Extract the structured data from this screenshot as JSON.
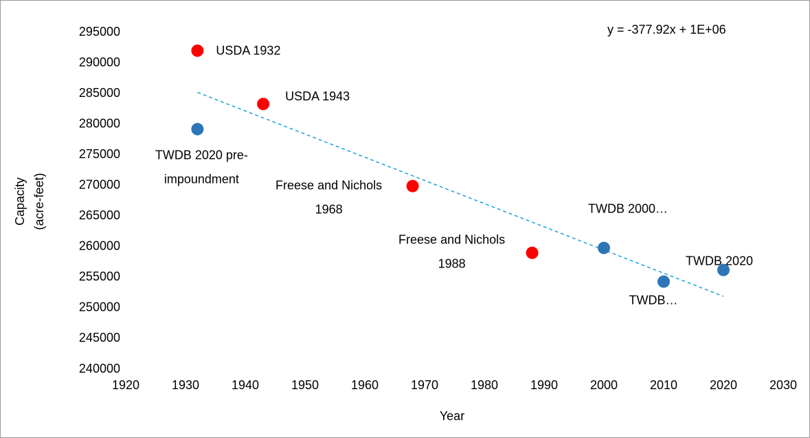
{
  "chart_data": {
    "type": "scatter",
    "xlabel": "Year",
    "ylabel": [
      "Capacity",
      "(acre-feet)"
    ],
    "xlim": [
      1920,
      2030
    ],
    "xticks": [
      1920,
      1930,
      1940,
      1950,
      1960,
      1970,
      1980,
      1990,
      2000,
      2010,
      2020,
      2030
    ],
    "ylim": [
      240000,
      295000
    ],
    "yticks": [
      240000,
      245000,
      250000,
      255000,
      260000,
      265000,
      270000,
      275000,
      280000,
      285000,
      290000,
      295000
    ],
    "grid": false,
    "series": [
      {
        "color": "#ff0000",
        "x": [
          1932,
          1943,
          1968,
          1988
        ],
        "values": [
          292000,
          283300,
          269900,
          259000
        ],
        "labels": [
          [
            "USDA 1932"
          ],
          [
            "USDA 1943"
          ],
          [
            "Freese and Nichols",
            "1968"
          ],
          [
            "Freese and Nichols",
            "1988"
          ]
        ]
      },
      {
        "color": "#2e75b6",
        "x": [
          1932,
          2000,
          2010,
          2020
        ],
        "values": [
          279200,
          259800,
          254300,
          256200
        ],
        "labels": [
          [
            "TWDB 2020 pre-",
            "impoundment"
          ],
          [
            "TWDB 2000…"
          ],
          [
            "TWDB…"
          ],
          [
            "TWDB 2020"
          ]
        ]
      }
    ],
    "trendline": {
      "x": [
        1932,
        2020
      ],
      "values": [
        285200,
        251900
      ],
      "color": "#2aa5dc",
      "equation": "y = -377.92x + 1E+06"
    }
  }
}
